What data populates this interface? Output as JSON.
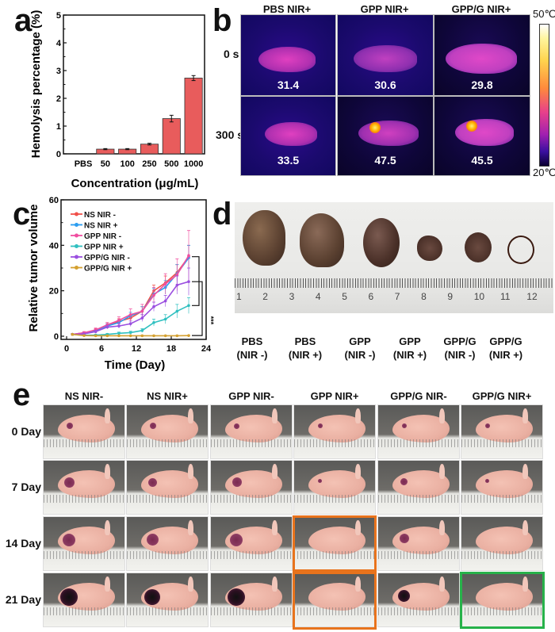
{
  "panels": {
    "a": {
      "letter": "a"
    },
    "b": {
      "letter": "b"
    },
    "c": {
      "letter": "c"
    },
    "d": {
      "letter": "d"
    },
    "e": {
      "letter": "e"
    }
  },
  "chart_data": [
    {
      "id": "a",
      "type": "bar",
      "title": "",
      "xlabel": "Concentration (μg/mL)",
      "ylabel": "Hemolysis percentage (%)",
      "categories": [
        "PBS",
        "50",
        "100",
        "250",
        "500",
        "1000"
      ],
      "values": [
        0,
        0.17,
        0.17,
        0.35,
        1.27,
        2.73
      ],
      "errors": [
        0,
        0.02,
        0.02,
        0.03,
        0.12,
        0.09
      ],
      "ylim": [
        0,
        5
      ],
      "yticks": [
        "0",
        "1",
        "2",
        "3",
        "4",
        "5"
      ],
      "bar_color": "#e85c5c",
      "grid": false
    },
    {
      "id": "c",
      "type": "line",
      "title": "",
      "xlabel": "Time (Day)",
      "ylabel": "Relative tumor volume",
      "xlim": [
        0,
        24
      ],
      "ylim": [
        0,
        60
      ],
      "xticks": [
        "0",
        "6",
        "12",
        "18",
        "24"
      ],
      "yticks": [
        "0",
        "20",
        "40",
        "60"
      ],
      "legend_position": "top-left",
      "x": [
        1,
        3,
        5,
        7,
        9,
        11,
        13,
        15,
        17,
        19,
        21
      ],
      "series": [
        {
          "name": "NS NIR -",
          "color": "#f0504a",
          "marker": "square",
          "values": [
            0.8,
            1.5,
            2.5,
            5.0,
            6.5,
            8.0,
            11.0,
            20.0,
            23.5,
            28.0,
            35.0
          ],
          "errors": [
            0.3,
            0.5,
            0.8,
            1.0,
            1.2,
            1.5,
            2.0,
            2.5,
            3.0,
            3.5,
            5.0
          ]
        },
        {
          "name": "NS NIR +",
          "color": "#2a9df0",
          "marker": "circle",
          "values": [
            0.8,
            1.3,
            2.2,
            4.5,
            6.0,
            9.0,
            11.0,
            18.5,
            21.5,
            27.5,
            34.5
          ],
          "errors": [
            0.3,
            0.5,
            0.8,
            1.0,
            1.2,
            1.5,
            2.0,
            2.5,
            3.0,
            4.0,
            5.5
          ]
        },
        {
          "name": "GPP NIR -",
          "color": "#f04ea0",
          "marker": "triangle-up",
          "values": [
            0.8,
            1.5,
            2.8,
            5.0,
            7.0,
            9.5,
            11.0,
            18.0,
            23.0,
            27.0,
            35.5
          ],
          "errors": [
            0.3,
            0.5,
            0.8,
            1.0,
            1.5,
            2.5,
            3.0,
            3.5,
            4.5,
            7.0,
            11.0
          ]
        },
        {
          "name": "GPP NIR +",
          "color": "#30c0c0",
          "marker": "triangle-down",
          "values": [
            0.8,
            0.4,
            0.5,
            0.8,
            1.3,
            1.6,
            2.5,
            6.0,
            7.5,
            11.0,
            13.5
          ],
          "errors": [
            0.2,
            0.3,
            0.3,
            0.4,
            0.5,
            0.6,
            0.8,
            1.5,
            2.0,
            3.0,
            3.5
          ]
        },
        {
          "name": "GPP/G NIR -",
          "color": "#9b4fe0",
          "marker": "triangle-left",
          "values": [
            0.8,
            1.0,
            2.0,
            4.0,
            4.5,
            5.5,
            8.0,
            13.0,
            15.5,
            22.5,
            24.0
          ],
          "errors": [
            0.3,
            0.4,
            0.6,
            0.8,
            1.0,
            1.2,
            1.5,
            2.0,
            2.5,
            4.0,
            6.0
          ]
        },
        {
          "name": "GPP/G NIR +",
          "color": "#d4a030",
          "marker": "triangle-right",
          "values": [
            0.8,
            0.3,
            0.2,
            0.2,
            0.2,
            0.2,
            0.2,
            0.2,
            0.2,
            0.2,
            0.3
          ],
          "errors": [
            0.1,
            0.1,
            0.1,
            0.1,
            0.1,
            0.1,
            0.1,
            0.1,
            0.1,
            0.1,
            0.1
          ]
        }
      ],
      "annotation": "***",
      "grid": false
    }
  ],
  "thermal": {
    "columns": [
      "PBS NIR+",
      "GPP NIR+",
      "GPP/G NIR+"
    ],
    "rows": [
      {
        "label": "0 s",
        "values": [
          "31.4",
          "30.6",
          "29.8"
        ]
      },
      {
        "label": "300 s",
        "values": [
          "33.5",
          "47.5",
          "45.5"
        ]
      }
    ],
    "scale_max": "50℃",
    "scale_min": "20℃"
  },
  "tumors": {
    "ruler_numbers": [
      "1",
      "2",
      "3",
      "4",
      "5",
      "6",
      "7",
      "8",
      "9",
      "10",
      "11",
      "12"
    ],
    "labels": [
      {
        "line1": "PBS",
        "line2": "(NIR -)"
      },
      {
        "line1": "PBS",
        "line2": "(NIR +)"
      },
      {
        "line1": "GPP",
        "line2": "(NIR -)"
      },
      {
        "line1": "GPP",
        "line2": "(NIR +)"
      },
      {
        "line1": "GPP/G",
        "line2": "(NIR -)"
      },
      {
        "line1": "GPP/G",
        "line2": "(NIR +)"
      }
    ]
  },
  "photos": {
    "columns": [
      "NS NIR-",
      "NS NIR+",
      "GPP NIR-",
      "GPP NIR+",
      "GPP/G NIR-",
      "GPP/G NIR+"
    ],
    "rows": [
      "0 Day",
      "7 Day",
      "14 Day",
      "21 Day"
    ],
    "highlight_colors": {
      "orange": "#e8731c",
      "green": "#27b24a"
    }
  }
}
